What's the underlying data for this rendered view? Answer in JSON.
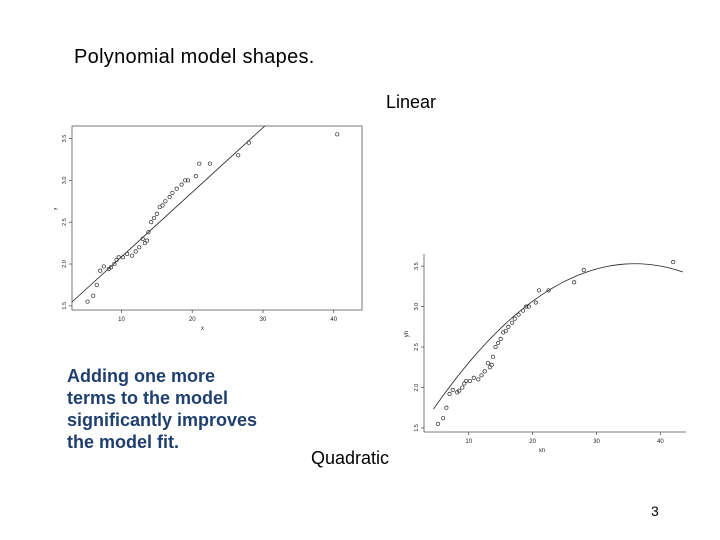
{
  "slide": {
    "title": "Polynomial model shapes.",
    "label_linear": "Linear",
    "label_quadratic": "Quadratic",
    "body_text": "Adding one more\nterms to the model\nsignificantly improves\nthe model fit.",
    "page_number": "3"
  },
  "colors": {
    "body_text": "#1f3f6e",
    "marker": "#333333",
    "line": "#222222"
  },
  "chart_data": [
    {
      "type": "scatter",
      "title": "",
      "xlabel": "x",
      "ylabel": "y",
      "xlim": [
        3,
        44
      ],
      "ylim": [
        1.45,
        3.65
      ],
      "xticks": [
        10,
        20,
        30,
        40
      ],
      "yticks": [
        1.5,
        2.0,
        2.5,
        3.0,
        3.5
      ],
      "fit": {
        "kind": "linear",
        "x": [
          5,
          30
        ],
        "y": [
          1.7,
          3.63
        ]
      },
      "points": {
        "x": [
          5.2,
          6.0,
          6.5,
          7.0,
          7.5,
          8.2,
          8.5,
          9.0,
          9.3,
          9.6,
          10.2,
          10.8,
          11.5,
          12.0,
          12.5,
          13.0,
          13.3,
          13.6,
          13.8,
          14.2,
          14.6,
          15.0,
          15.4,
          15.8,
          16.2,
          16.8,
          17.2,
          17.8,
          18.5,
          19.0,
          19.4,
          20.5,
          21.0,
          22.5,
          26.5,
          28.0,
          40.5
        ],
        "y": [
          1.55,
          1.62,
          1.75,
          1.92,
          1.97,
          1.94,
          1.96,
          2.0,
          2.05,
          2.08,
          2.08,
          2.12,
          2.1,
          2.15,
          2.2,
          2.3,
          2.25,
          2.28,
          2.38,
          2.5,
          2.55,
          2.6,
          2.68,
          2.7,
          2.75,
          2.8,
          2.85,
          2.9,
          2.95,
          3.0,
          3.0,
          3.05,
          3.2,
          3.2,
          3.3,
          3.45,
          3.55
        ]
      }
    },
    {
      "type": "scatter",
      "title": "",
      "xlabel": "xn",
      "ylabel": "yn",
      "xlim": [
        3,
        44
      ],
      "ylim": [
        1.45,
        3.65
      ],
      "xticks": [
        10,
        20,
        30,
        40
      ],
      "yticks": [
        1.5,
        2.0,
        2.5,
        3.0,
        3.5
      ],
      "fit": {
        "kind": "quadratic",
        "vertex_x": 36,
        "vertex_y": 3.53,
        "a": -0.00181,
        "x_range": [
          4.5,
          43.5
        ]
      },
      "points": {
        "x": [
          5.2,
          6.0,
          6.5,
          7.0,
          7.5,
          8.2,
          8.5,
          9.0,
          9.3,
          9.6,
          10.2,
          10.8,
          11.5,
          12.0,
          12.5,
          13.0,
          13.3,
          13.6,
          13.8,
          14.2,
          14.6,
          15.0,
          15.4,
          15.8,
          16.2,
          16.8,
          17.2,
          17.8,
          18.5,
          19.0,
          19.4,
          20.5,
          21.0,
          22.5,
          26.5,
          28.0,
          42.0
        ],
        "y": [
          1.55,
          1.62,
          1.75,
          1.92,
          1.97,
          1.94,
          1.96,
          2.0,
          2.05,
          2.08,
          2.08,
          2.12,
          2.1,
          2.15,
          2.2,
          2.3,
          2.25,
          2.28,
          2.38,
          2.5,
          2.55,
          2.6,
          2.68,
          2.7,
          2.75,
          2.8,
          2.85,
          2.9,
          2.95,
          3.0,
          3.0,
          3.05,
          3.2,
          3.2,
          3.3,
          3.45,
          3.55
        ]
      }
    }
  ]
}
